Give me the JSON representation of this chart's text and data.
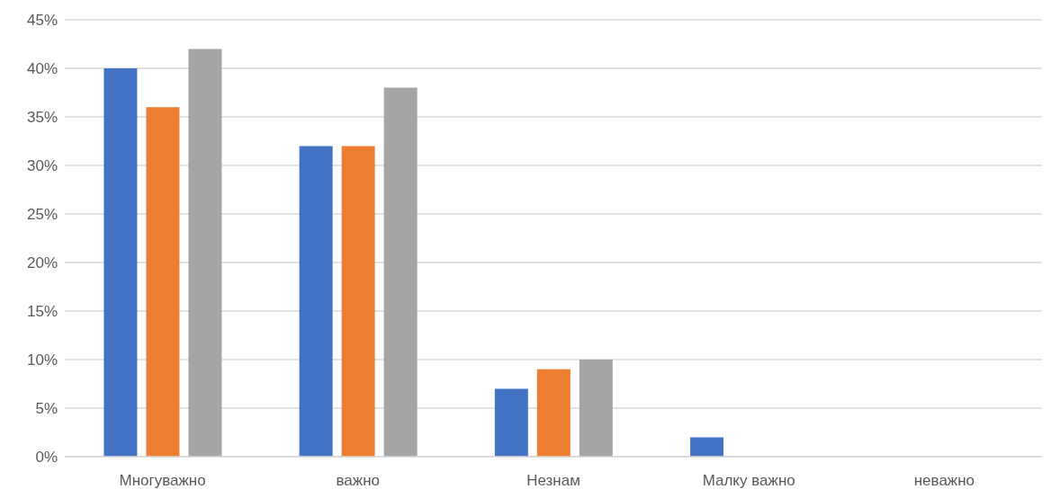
{
  "chart_data": {
    "type": "bar",
    "categories": [
      "Многуважно",
      "важно",
      "Незнам",
      "Малку важно",
      "неважно"
    ],
    "series": [
      {
        "color": "#4472c4",
        "values": [
          40,
          32,
          7,
          2,
          0
        ]
      },
      {
        "color": "#ed7d31",
        "values": [
          36,
          32,
          9,
          0,
          0
        ]
      },
      {
        "color": "#a5a5a5",
        "values": [
          42,
          38,
          10,
          0,
          0
        ]
      }
    ],
    "ylim": [
      0,
      45
    ],
    "yticks": [
      {
        "value": 0,
        "label": "0%"
      },
      {
        "value": 5,
        "label": "5%"
      },
      {
        "value": 10,
        "label": "10%"
      },
      {
        "value": 15,
        "label": "15%"
      },
      {
        "value": 20,
        "label": "20%"
      },
      {
        "value": 25,
        "label": "25%"
      },
      {
        "value": 30,
        "label": "30%"
      },
      {
        "value": 35,
        "label": "35%"
      },
      {
        "value": 40,
        "label": "40%"
      },
      {
        "value": 45,
        "label": "45%"
      }
    ],
    "grid": "y",
    "legend": false
  }
}
